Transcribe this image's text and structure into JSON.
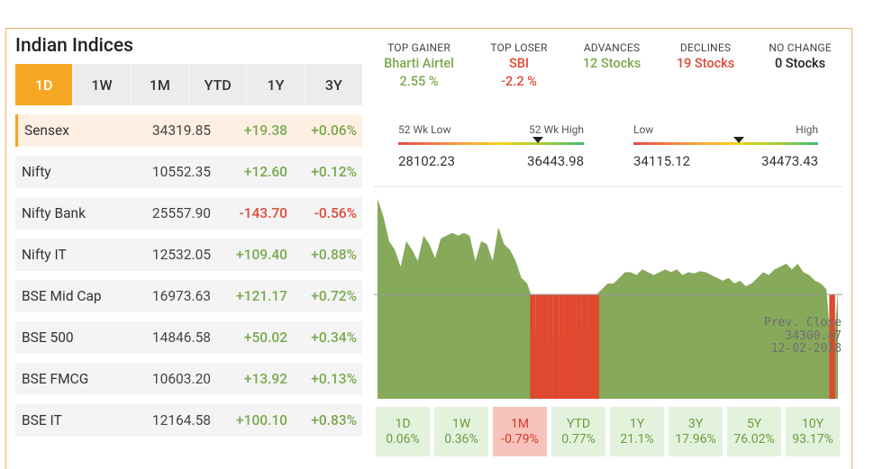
{
  "title": "Indian Indices",
  "tabs": [
    "1D",
    "1W",
    "1M",
    "YTD",
    "1Y",
    "3Y"
  ],
  "active_tab": "1D",
  "indices": [
    {
      "name": "Sensex",
      "value": "34319.85",
      "change": "+19.38",
      "pct": "+0.06%",
      "dir": "pos"
    },
    {
      "name": "Nifty",
      "value": "10552.35",
      "change": "+12.60",
      "pct": "+0.12%",
      "dir": "pos"
    },
    {
      "name": "Nifty Bank",
      "value": "25557.90",
      "change": "-143.70",
      "pct": "-0.56%",
      "dir": "neg"
    },
    {
      "name": "Nifty IT",
      "value": "12532.05",
      "change": "+109.40",
      "pct": "+0.88%",
      "dir": "pos"
    },
    {
      "name": "BSE Mid Cap",
      "value": "16973.63",
      "change": "+121.17",
      "pct": "+0.72%",
      "dir": "pos"
    },
    {
      "name": "BSE 500",
      "value": "14846.58",
      "change": "+50.02",
      "pct": "+0.34%",
      "dir": "pos"
    },
    {
      "name": "BSE FMCG",
      "value": "10603.20",
      "change": "+13.92",
      "pct": "+0.13%",
      "dir": "pos"
    },
    {
      "name": "BSE IT",
      "value": "12164.58",
      "change": "+100.10",
      "pct": "+0.83%",
      "dir": "pos"
    }
  ],
  "stats": {
    "top_gainer": {
      "label": "TOP GAINER",
      "name": "Bharti Airtel",
      "value": "2.55 %"
    },
    "top_loser": {
      "label": "TOP LOSER",
      "name": "SBI",
      "value": "-2.2 %"
    },
    "advances": {
      "label": "ADVANCES",
      "value": "12 Stocks"
    },
    "declines": {
      "label": "DECLINES",
      "value": "19 Stocks"
    },
    "no_change": {
      "label": "NO CHANGE",
      "value": "0 Stocks"
    }
  },
  "week52": {
    "low_label": "52 Wk Low",
    "high_label": "52 Wk High",
    "low": "28102.23",
    "high": "36443.98",
    "marker_fraction": 0.75
  },
  "day": {
    "low_label": "Low",
    "high_label": "High",
    "low": "34115.12",
    "high": "34473.43",
    "marker_fraction": 0.57
  },
  "prev_close": {
    "label": "Prev. Close",
    "value": "34300.47",
    "date": "12-02-2018"
  },
  "periods": [
    {
      "label": "1D",
      "value": "0.06%",
      "dir": "pos"
    },
    {
      "label": "1W",
      "value": "0.36%",
      "dir": "pos"
    },
    {
      "label": "1M",
      "value": "-0.79%",
      "dir": "neg"
    },
    {
      "label": "YTD",
      "value": "0.77%",
      "dir": "pos"
    },
    {
      "label": "1Y",
      "value": "21.1%",
      "dir": "pos"
    },
    {
      "label": "3Y",
      "value": "17.96%",
      "dir": "pos"
    },
    {
      "label": "5Y",
      "value": "76.02%",
      "dir": "pos"
    },
    {
      "label": "10Y",
      "value": "93.17%",
      "dir": "pos"
    }
  ],
  "chart_data": {
    "type": "area",
    "baseline": 34300.47,
    "ylim": [
      34115.12,
      34473.43
    ],
    "colors": {
      "above": "#86a95a",
      "below": "#e0482f"
    },
    "values": [
      34470,
      34440,
      34395,
      34380,
      34350,
      34395,
      34380,
      34360,
      34405,
      34390,
      34365,
      34400,
      34405,
      34410,
      34405,
      34410,
      34405,
      34360,
      34395,
      34390,
      34360,
      34420,
      34390,
      34380,
      34360,
      34330,
      34320,
      34290,
      34180,
      34230,
      34190,
      34260,
      34190,
      34280,
      34200,
      34280,
      34230,
      34250,
      34300,
      34310,
      34320,
      34320,
      34330,
      34340,
      34340,
      34335,
      34345,
      34340,
      34335,
      34340,
      34345,
      34340,
      34345,
      34335,
      34340,
      34338,
      34342,
      34340,
      34335,
      34330,
      34325,
      34330,
      34320,
      34325,
      34315,
      34320,
      34330,
      34340,
      34335,
      34345,
      34350,
      34355,
      34345,
      34355,
      34340,
      34335,
      34325,
      34320,
      34310,
      34180,
      34305
    ]
  }
}
